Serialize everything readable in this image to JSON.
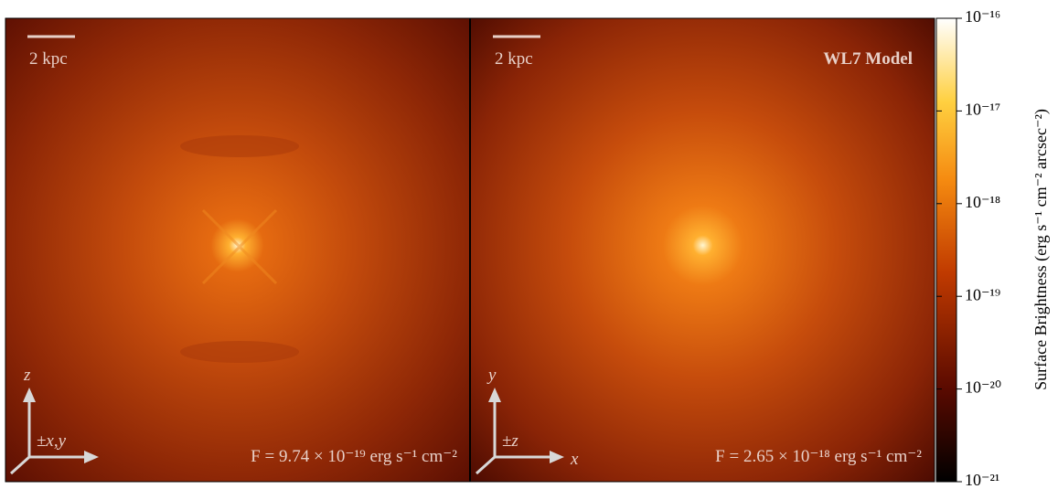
{
  "panels": [
    {
      "scale_bar": "2 kpc",
      "flux": "F = 9.74 × 10⁻¹⁹ erg s⁻¹ cm⁻²",
      "axis_up": "z",
      "axis_out": "±x,y"
    },
    {
      "scale_bar": "2 kpc",
      "model": "WL7 Model",
      "flux": "F = 2.65 × 10⁻¹⁸ erg s⁻¹ cm⁻²",
      "axis_up": "y",
      "axis_out": "±z",
      "axis_right": "x"
    }
  ],
  "colorbar": {
    "label": "Surface Brightness (erg s⁻¹ cm⁻² arcsec⁻²)",
    "log": true,
    "lim": [
      1e-21,
      1e-16
    ],
    "ticks": [
      {
        "value": 1e-16,
        "label": "10⁻¹⁶"
      },
      {
        "value": 1e-17,
        "label": "10⁻¹⁷"
      },
      {
        "value": 1e-18,
        "label": "10⁻¹⁸"
      },
      {
        "value": 1e-19,
        "label": "10⁻¹⁹"
      },
      {
        "value": 1e-20,
        "label": "10⁻²⁰"
      },
      {
        "value": 1e-21,
        "label": "10⁻²¹"
      }
    ]
  }
}
